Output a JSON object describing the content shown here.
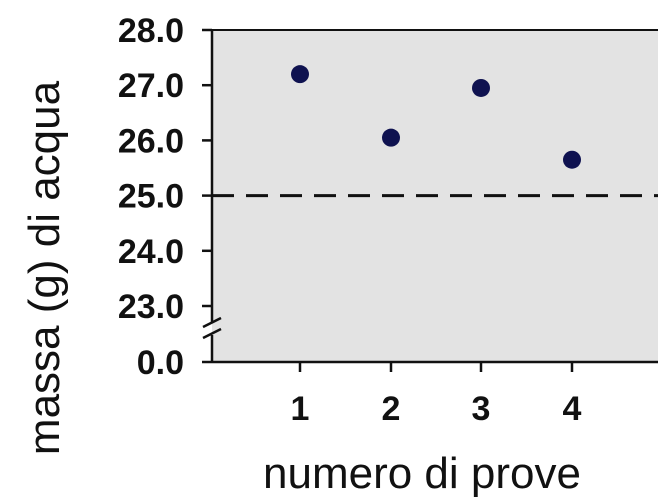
{
  "chart_data": {
    "type": "scatter",
    "title": "",
    "xlabel": "numero di prove",
    "ylabel": "massa (g) di acqua",
    "x_categories": [
      "1",
      "2",
      "3",
      "4"
    ],
    "y_tick_labels": [
      "0.0",
      "23.0",
      "24.0",
      "25.0",
      "26.0",
      "27.0",
      "28.0"
    ],
    "y_axis_break": {
      "from": 0.0,
      "to": 23.0
    },
    "ylim": [
      23.0,
      28.0
    ],
    "points": [
      {
        "x": 1,
        "y": 27.2
      },
      {
        "x": 2,
        "y": 26.05
      },
      {
        "x": 3,
        "y": 26.95
      },
      {
        "x": 4,
        "y": 25.65
      }
    ],
    "reference_line": {
      "y": 25.0,
      "style": "dashed"
    },
    "grid": false,
    "plot_background": "#e3e3e3",
    "marker_color": "#0f1250",
    "line_color": "#111111"
  }
}
